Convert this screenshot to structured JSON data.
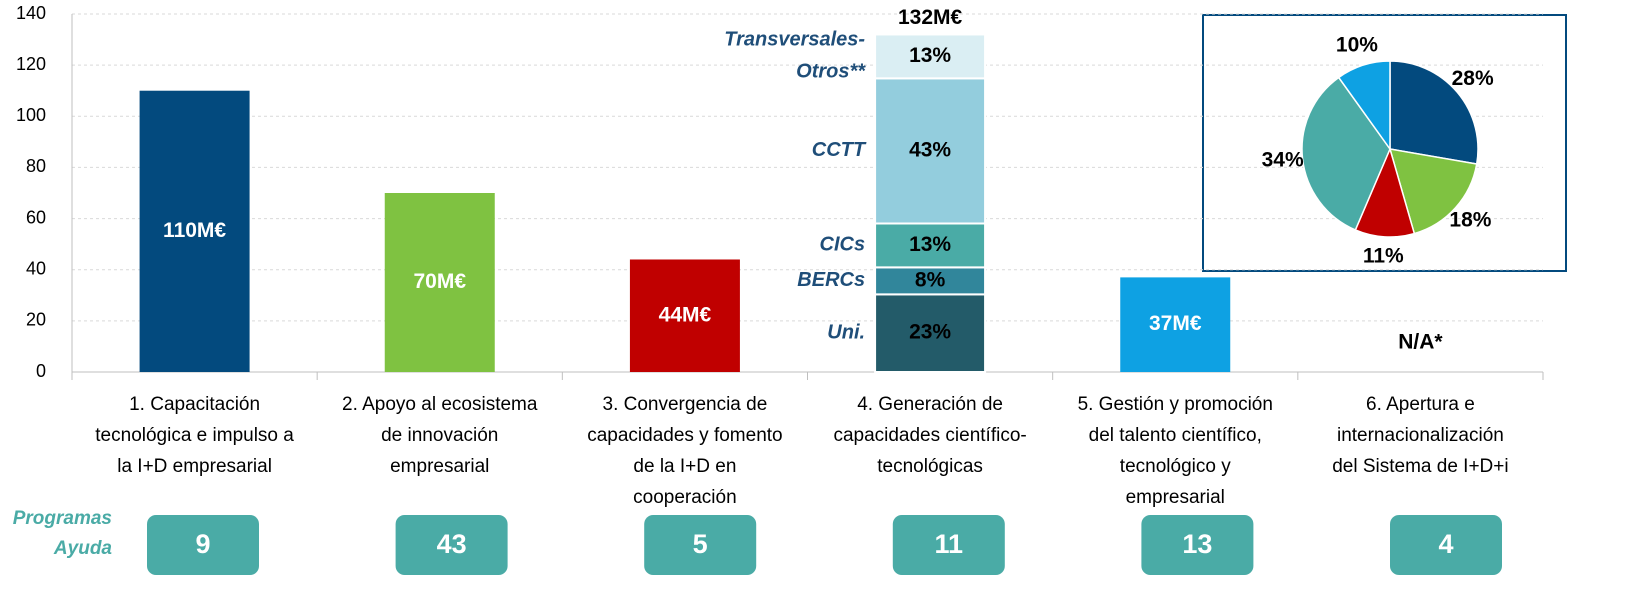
{
  "chart_data": [
    {
      "type": "bar",
      "categories": [
        [
          "1. Capacitación",
          "tecnológica e impulso a",
          "la I+D empresarial"
        ],
        [
          "2. Apoyo al ecosistema",
          "de innovación",
          "empresarial"
        ],
        [
          "3. Convergencia de",
          "capacidades y fomento",
          "de la I+D en",
          "cooperación"
        ],
        [
          "4. Generación de",
          "capacidades científico-",
          "tecnológicas"
        ],
        [
          "5. Gestión y promoción",
          "del talento científico,",
          "tecnológico y",
          "empresarial"
        ],
        [
          "6. Apertura e",
          "internacionalización",
          "del Sistema de I+D+i"
        ]
      ],
      "values": [
        110,
        70,
        44,
        132,
        37,
        null
      ],
      "value_labels": [
        "110M€",
        "70M€",
        "44M€",
        "132M€",
        "37M€",
        "N/A*"
      ],
      "colors": [
        "#034a7e",
        "#7fc241",
        "#c00000",
        null,
        "#0ea1e3",
        null
      ],
      "stack": {
        "names": [
          [
            "Uni."
          ],
          [
            "BERCs"
          ],
          [
            "CICs"
          ],
          [
            "CCTT"
          ],
          [
            "Transversales-",
            "Otros**"
          ]
        ],
        "values": [
          23,
          8,
          13,
          43,
          13
        ],
        "value_labels": [
          "23%",
          "8%",
          "13%",
          "43%",
          "13%"
        ],
        "colors": [
          "#235b69",
          "#31869b",
          "#4aaba6",
          "#93cddd",
          "#daeef3"
        ]
      },
      "ylim": [
        0,
        140
      ],
      "yticks": [
        0,
        20,
        40,
        60,
        80,
        100,
        120,
        140
      ],
      "grid": true
    },
    {
      "type": "pie",
      "values": [
        28,
        18,
        11,
        34,
        10
      ],
      "value_labels": [
        "28%",
        "18%",
        "11%",
        "34%",
        "10%"
      ],
      "colors": [
        "#034a7e",
        "#7fc241",
        "#c00000",
        "#4aaba6",
        "#0ea1e3"
      ]
    }
  ],
  "programs": {
    "label": [
      "Programas",
      "Ayuda"
    ],
    "counts": [
      9,
      43,
      5,
      11,
      13,
      4
    ]
  }
}
